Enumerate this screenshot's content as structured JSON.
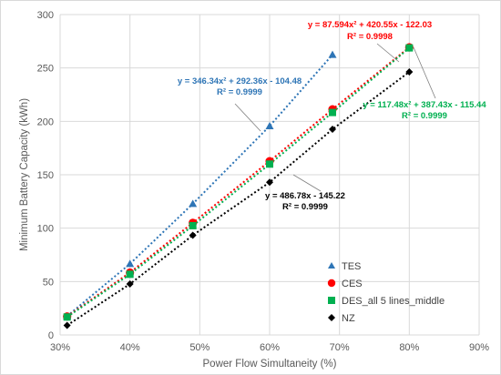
{
  "chart_data": {
    "type": "scatter",
    "xlabel": "Power Flow Simultaneity (%)",
    "ylabel": "Minimum Battery Capacity (kWh)",
    "xlim": [
      30,
      90
    ],
    "ylim": [
      0,
      300
    ],
    "x_ticks": [
      30,
      40,
      50,
      60,
      70,
      80,
      90
    ],
    "x_tick_labels": [
      "30%",
      "40%",
      "50%",
      "60%",
      "70%",
      "80%",
      "90%"
    ],
    "y_ticks": [
      0,
      50,
      100,
      150,
      200,
      250,
      300
    ],
    "y_tick_labels": [
      "0",
      "50",
      "100",
      "150",
      "200",
      "250",
      "300"
    ],
    "grid": "both",
    "legend_position": "bottom-right",
    "series": [
      {
        "name": "TES",
        "color": "#2e75b6",
        "marker": "triangle",
        "x": [
          31,
          40,
          49,
          60,
          69
        ],
        "y": [
          17.6,
          66.6,
          122.8,
          195.6,
          262.4
        ],
        "trend_line": "dotted polynomial",
        "equation": "y = 346.34x² + 292.36x - 104.48",
        "r2": "R² = 0.9999"
      },
      {
        "name": "CES",
        "color": "#ff0000",
        "marker": "circle",
        "x": [
          31,
          40,
          49,
          60,
          69,
          80
        ],
        "y": [
          17.3,
          58.4,
          105.0,
          162.7,
          211.3,
          269.3
        ],
        "trend_line": "dotted polynomial",
        "equation": "y = 87.594x² + 420.55x - 122.03",
        "r2": "R² = 0.9998"
      },
      {
        "name": "DES_all 5 lines_middle",
        "color": "#00b050",
        "marker": "square",
        "x": [
          31,
          40,
          49,
          60,
          69,
          80
        ],
        "y": [
          16.8,
          56.8,
          102.3,
          160.0,
          208.3,
          268.8
        ],
        "trend_line": "dotted polynomial",
        "equation": "y = 117.48x² + 387.43x - 115.44",
        "r2": "R² = 0.9999"
      },
      {
        "name": "NZ",
        "color": "#000000",
        "marker": "diamond",
        "x": [
          31,
          40,
          49,
          60,
          69,
          80
        ],
        "y": [
          9.0,
          47.7,
          93.3,
          143.0,
          192.6,
          246.3
        ],
        "trend_line": "dotted linear",
        "equation": "y = 486.78x - 145.22",
        "r2": "R² = 0.9999"
      }
    ]
  }
}
